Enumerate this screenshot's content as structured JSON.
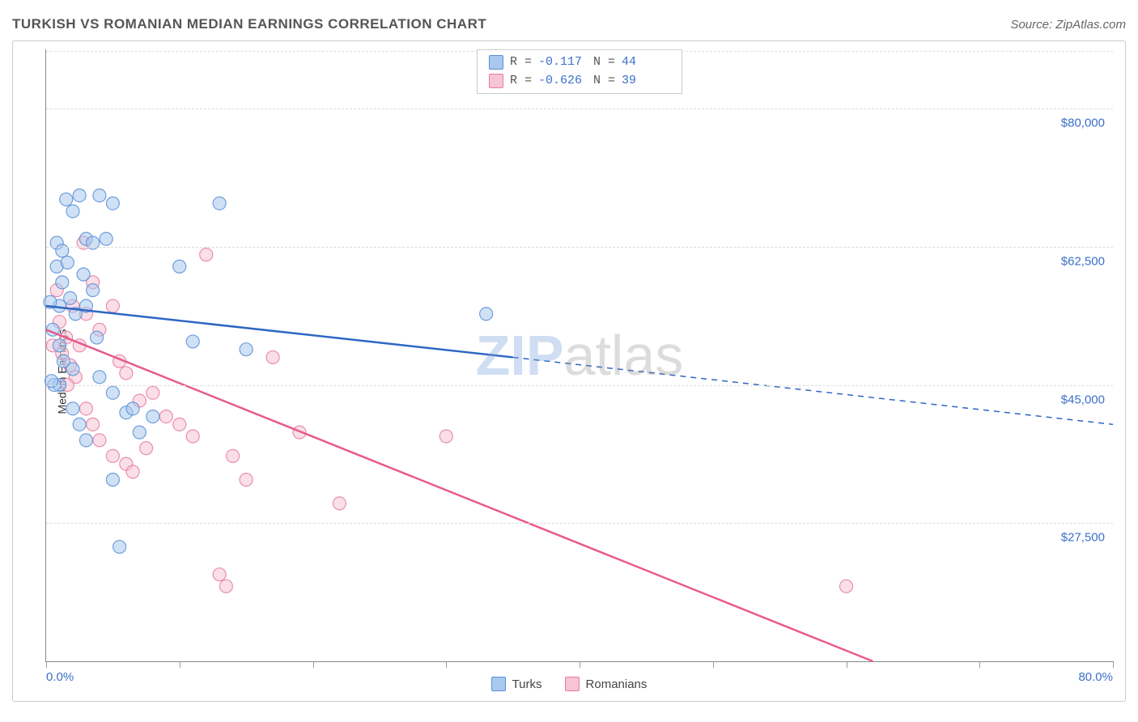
{
  "header": {
    "title": "TURKISH VS ROMANIAN MEDIAN EARNINGS CORRELATION CHART",
    "source": "Source: ZipAtlas.com"
  },
  "watermark": {
    "part1": "ZIP",
    "part2": "atlas"
  },
  "chart": {
    "type": "scatter",
    "ylabel": "Median Earnings",
    "xlim": [
      0,
      80
    ],
    "ylim": [
      10000,
      87500
    ],
    "x_ticks": [
      0,
      10,
      20,
      30,
      40,
      50,
      60,
      70,
      80
    ],
    "x_tick_labels": {
      "0": "0.0%",
      "80": "80.0%"
    },
    "y_gridlines": [
      27500,
      45000,
      62500,
      80000
    ],
    "y_tick_labels": [
      "$27,500",
      "$45,000",
      "$62,500",
      "$80,000"
    ],
    "grid_color": "#dddddd",
    "axis_color": "#888888",
    "tick_label_color": "#3b6fc9",
    "background_color": "#ffffff",
    "marker_radius": 8,
    "marker_opacity": 0.55,
    "marker_stroke_opacity": 0.85,
    "line_width_solid": 2.5,
    "line_width_dashed": 1.5,
    "series": [
      {
        "name": "Turks",
        "color_fill": "#a9c8ef",
        "color_stroke": "#5b8fd6",
        "line_color": "#2e66c4",
        "R": "-0.117",
        "N": "44",
        "trend": {
          "x1": 0,
          "y1": 55000,
          "x2_solid": 35,
          "y2_solid": 48500,
          "x2": 80,
          "y2": 40000
        },
        "points": [
          [
            1.0,
            55000
          ],
          [
            1.5,
            68500
          ],
          [
            2.0,
            67000
          ],
          [
            2.5,
            69000
          ],
          [
            3.0,
            63500
          ],
          [
            3.5,
            63000
          ],
          [
            4.0,
            69000
          ],
          [
            5.0,
            68000
          ],
          [
            0.8,
            60000
          ],
          [
            1.2,
            58000
          ],
          [
            1.8,
            56000
          ],
          [
            2.2,
            54000
          ],
          [
            0.5,
            52000
          ],
          [
            1.0,
            50000
          ],
          [
            1.3,
            48000
          ],
          [
            2.0,
            47000
          ],
          [
            3.0,
            55000
          ],
          [
            3.5,
            57000
          ],
          [
            4.0,
            46000
          ],
          [
            5.0,
            44000
          ],
          [
            6.0,
            41500
          ],
          [
            6.5,
            42000
          ],
          [
            7.0,
            39000
          ],
          [
            8.0,
            41000
          ],
          [
            2.0,
            42000
          ],
          [
            2.5,
            40000
          ],
          [
            3.0,
            38000
          ],
          [
            1.0,
            45000
          ],
          [
            0.6,
            45000
          ],
          [
            0.4,
            45500
          ],
          [
            5.0,
            33000
          ],
          [
            5.5,
            24500
          ],
          [
            10.0,
            60000
          ],
          [
            11.0,
            50500
          ],
          [
            13.0,
            68000
          ],
          [
            15.0,
            49500
          ],
          [
            33.0,
            54000
          ],
          [
            0.8,
            63000
          ],
          [
            1.2,
            62000
          ],
          [
            1.6,
            60500
          ],
          [
            4.5,
            63500
          ],
          [
            3.8,
            51000
          ],
          [
            2.8,
            59000
          ],
          [
            0.3,
            55500
          ]
        ]
      },
      {
        "name": "Romanians",
        "color_fill": "#f6c4d3",
        "color_stroke": "#e87ba0",
        "line_color": "#e85a8f",
        "R": "-0.626",
        "N": "39",
        "trend": {
          "x1": 0,
          "y1": 52000,
          "x2_solid": 62,
          "y2_solid": 10000,
          "x2": 62,
          "y2": 10000
        },
        "points": [
          [
            1.0,
            53000
          ],
          [
            1.5,
            51000
          ],
          [
            2.0,
            55000
          ],
          [
            2.5,
            50000
          ],
          [
            3.0,
            54000
          ],
          [
            3.5,
            58000
          ],
          [
            4.0,
            52000
          ],
          [
            0.8,
            57000
          ],
          [
            1.2,
            49000
          ],
          [
            1.8,
            47500
          ],
          [
            2.2,
            46000
          ],
          [
            5.0,
            55000
          ],
          [
            5.5,
            48000
          ],
          [
            6.0,
            46500
          ],
          [
            7.0,
            43000
          ],
          [
            8.0,
            44000
          ],
          [
            9.0,
            41000
          ],
          [
            3.0,
            42000
          ],
          [
            3.5,
            40000
          ],
          [
            4.0,
            38000
          ],
          [
            5.0,
            36000
          ],
          [
            6.0,
            35000
          ],
          [
            6.5,
            34000
          ],
          [
            7.5,
            37000
          ],
          [
            10.0,
            40000
          ],
          [
            11.0,
            38500
          ],
          [
            12.0,
            61500
          ],
          [
            14.0,
            36000
          ],
          [
            15.0,
            33000
          ],
          [
            17.0,
            48500
          ],
          [
            19.0,
            39000
          ],
          [
            22.0,
            30000
          ],
          [
            30.0,
            38500
          ],
          [
            13.0,
            21000
          ],
          [
            13.5,
            19500
          ],
          [
            60.0,
            19500
          ],
          [
            2.8,
            63000
          ],
          [
            1.6,
            45000
          ],
          [
            0.5,
            50000
          ]
        ]
      }
    ]
  },
  "stats_box": {
    "r_label": "R =",
    "n_label": "N ="
  },
  "legend": {
    "label1": "Turks",
    "label2": "Romanians"
  }
}
